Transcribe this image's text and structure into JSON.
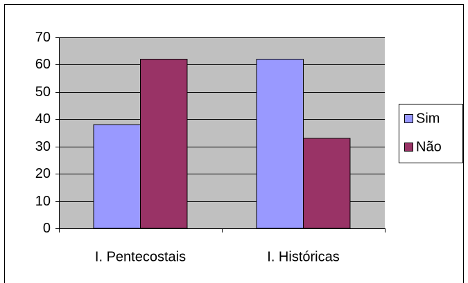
{
  "chart_data": {
    "type": "bar",
    "categories": [
      "I. Pentecostais",
      "I. Históricas"
    ],
    "series": [
      {
        "name": "Sim",
        "color": "#9999ff",
        "values": [
          38,
          62
        ]
      },
      {
        "name": "Não",
        "color": "#993366",
        "values": [
          62,
          33
        ]
      }
    ],
    "ylim": [
      0,
      70
    ],
    "yticks": [
      0,
      10,
      20,
      30,
      40,
      50,
      60,
      70
    ],
    "grid": true,
    "legend": "right",
    "plot_background": "#c0c0c0"
  }
}
